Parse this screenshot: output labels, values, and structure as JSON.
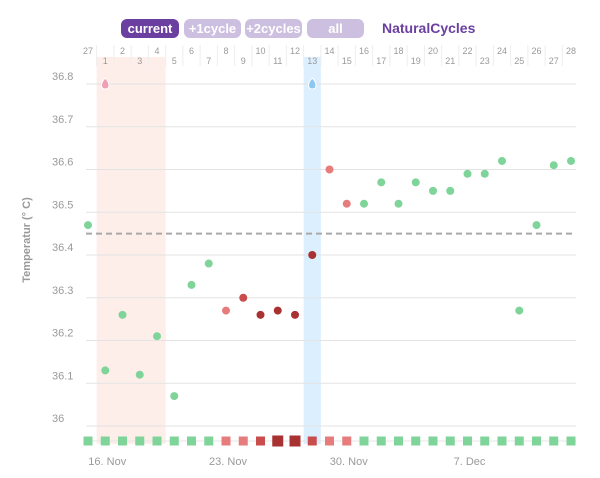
{
  "header": {
    "tabs": [
      {
        "label": "current",
        "color": "#6b3fa0"
      },
      {
        "label": "+1cycle",
        "color": "#cdbfe0"
      },
      {
        "label": "+2cycles",
        "color": "#cdbfe0"
      },
      {
        "label": "all",
        "color": "#cdbfe0"
      }
    ],
    "brand": "NaturalCycles"
  },
  "colors": {
    "green": "#7fd49a",
    "pink": "#e77c7c",
    "darkred": "#a83232",
    "mid": "#c94d4d",
    "period_band": "#fdeeea",
    "ovulation_band": "#dcefff",
    "coverline": "#a9a9a9",
    "grid": "#e3e3e3"
  },
  "chart_data": {
    "type": "scatter",
    "ylabel": "Temperatur (° C)",
    "ylim": [
      35.97,
      36.87
    ],
    "y_ticks": [
      "36",
      "36.1",
      "36.2",
      "36.3",
      "36.4",
      "36.5",
      "36.6",
      "36.7",
      "36.8"
    ],
    "coverline": 36.45,
    "grid": true,
    "day_labels": [
      "27",
      "1",
      "2",
      "3",
      "4",
      "5",
      "6",
      "7",
      "8",
      "9",
      "10",
      "11",
      "12",
      "13",
      "14",
      "15",
      "16",
      "17",
      "18",
      "19",
      "20",
      "21",
      "22",
      "23",
      "24",
      "25",
      "26",
      "27",
      "28"
    ],
    "x_date_labels": [
      {
        "label": "16. Nov",
        "index": 1
      },
      {
        "label": "23. Nov",
        "index": 8
      },
      {
        "label": "30. Nov",
        "index": 15
      },
      {
        "label": "7. Dec",
        "index": 22
      }
    ],
    "period_days": [
      1,
      4
    ],
    "ovulation_day": 13,
    "cycle_start_icon_day": 1,
    "ovulation_icon_day": 13,
    "points": [
      {
        "day": 0,
        "value": 36.47,
        "color": "green"
      },
      {
        "day": 1,
        "value": 36.13,
        "color": "green"
      },
      {
        "day": 2,
        "value": 36.26,
        "color": "green"
      },
      {
        "day": 3,
        "value": 36.12,
        "color": "green"
      },
      {
        "day": 4,
        "value": 36.21,
        "color": "green"
      },
      {
        "day": 5,
        "value": 36.07,
        "color": "green"
      },
      {
        "day": 6,
        "value": 36.33,
        "color": "green"
      },
      {
        "day": 7,
        "value": 36.38,
        "color": "green"
      },
      {
        "day": 8,
        "value": 36.27,
        "color": "pink"
      },
      {
        "day": 9,
        "value": 36.3,
        "color": "mid"
      },
      {
        "day": 10,
        "value": 36.26,
        "color": "darkred"
      },
      {
        "day": 11,
        "value": 36.27,
        "color": "darkred"
      },
      {
        "day": 12,
        "value": 36.26,
        "color": "darkred"
      },
      {
        "day": 13,
        "value": 36.4,
        "color": "darkred"
      },
      {
        "day": 14,
        "value": 36.6,
        "color": "pink"
      },
      {
        "day": 15,
        "value": 36.52,
        "color": "pink"
      },
      {
        "day": 16,
        "value": 36.52,
        "color": "green"
      },
      {
        "day": 17,
        "value": 36.57,
        "color": "green"
      },
      {
        "day": 18,
        "value": 36.52,
        "color": "green"
      },
      {
        "day": 19,
        "value": 36.57,
        "color": "green"
      },
      {
        "day": 20,
        "value": 36.55,
        "color": "green"
      },
      {
        "day": 21,
        "value": 36.55,
        "color": "green"
      },
      {
        "day": 22,
        "value": 36.59,
        "color": "green"
      },
      {
        "day": 23,
        "value": 36.59,
        "color": "green"
      },
      {
        "day": 24,
        "value": 36.62,
        "color": "green"
      },
      {
        "day": 25,
        "value": 36.27,
        "color": "green"
      },
      {
        "day": 26,
        "value": 36.47,
        "color": "green"
      },
      {
        "day": 27,
        "value": 36.61,
        "color": "green"
      },
      {
        "day": 28,
        "value": 36.62,
        "color": "green"
      }
    ],
    "day_markers": [
      {
        "day": 0,
        "color": "green",
        "size": "small"
      },
      {
        "day": 1,
        "color": "green",
        "size": "small"
      },
      {
        "day": 2,
        "color": "green",
        "size": "small"
      },
      {
        "day": 3,
        "color": "green",
        "size": "small"
      },
      {
        "day": 4,
        "color": "green",
        "size": "small"
      },
      {
        "day": 5,
        "color": "green",
        "size": "small"
      },
      {
        "day": 6,
        "color": "green",
        "size": "small"
      },
      {
        "day": 7,
        "color": "green",
        "size": "small"
      },
      {
        "day": 8,
        "color": "pink",
        "size": "small"
      },
      {
        "day": 9,
        "color": "pink",
        "size": "small"
      },
      {
        "day": 10,
        "color": "mid",
        "size": "small"
      },
      {
        "day": 11,
        "color": "darkred",
        "size": "large"
      },
      {
        "day": 12,
        "color": "darkred",
        "size": "large"
      },
      {
        "day": 13,
        "color": "mid",
        "size": "small"
      },
      {
        "day": 14,
        "color": "pink",
        "size": "small"
      },
      {
        "day": 15,
        "color": "pink",
        "size": "small"
      },
      {
        "day": 16,
        "color": "green",
        "size": "small"
      },
      {
        "day": 17,
        "color": "green",
        "size": "small"
      },
      {
        "day": 18,
        "color": "green",
        "size": "small"
      },
      {
        "day": 19,
        "color": "green",
        "size": "small"
      },
      {
        "day": 20,
        "color": "green",
        "size": "small"
      },
      {
        "day": 21,
        "color": "green",
        "size": "small"
      },
      {
        "day": 22,
        "color": "green",
        "size": "small"
      },
      {
        "day": 23,
        "color": "green",
        "size": "small"
      },
      {
        "day": 24,
        "color": "green",
        "size": "small"
      },
      {
        "day": 25,
        "color": "green",
        "size": "small"
      },
      {
        "day": 26,
        "color": "green",
        "size": "small"
      },
      {
        "day": 27,
        "color": "green",
        "size": "small"
      },
      {
        "day": 28,
        "color": "green",
        "size": "small"
      }
    ]
  }
}
